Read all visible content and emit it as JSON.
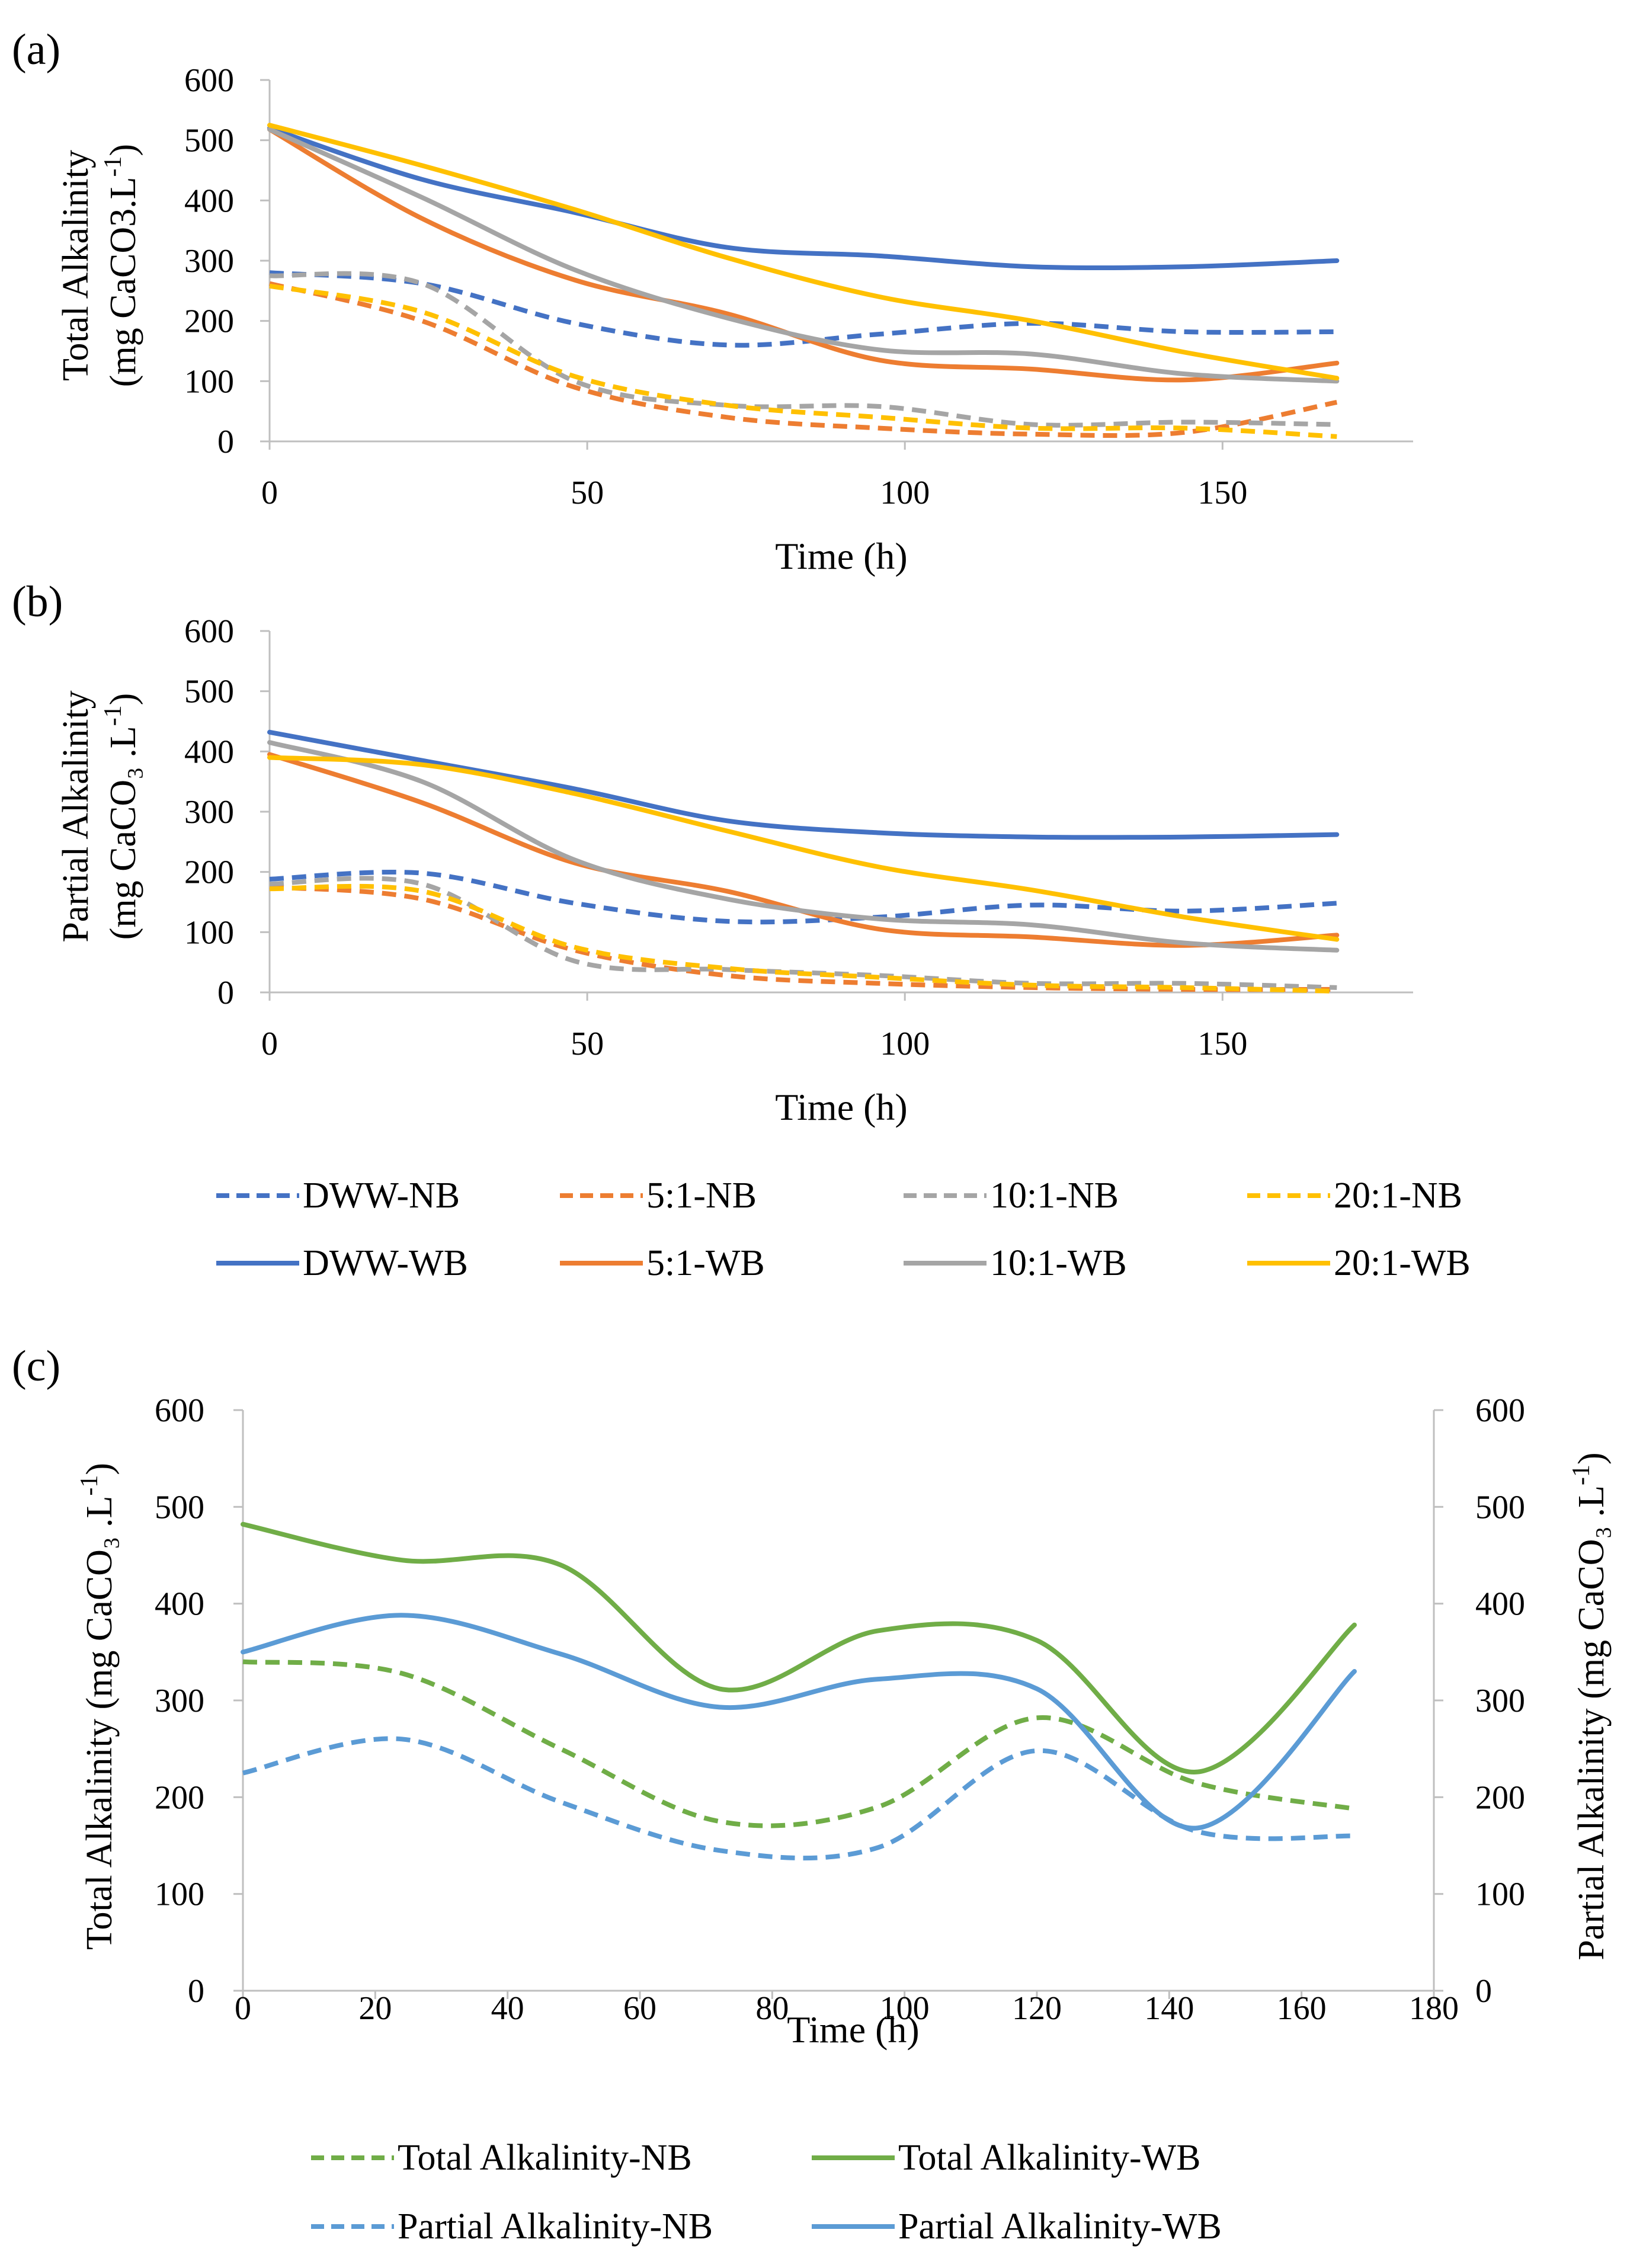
{
  "colors": {
    "DWW": "#4472C4",
    "r5": "#ED7D31",
    "r10": "#A5A5A5",
    "r20": "#FFC000",
    "total": "#70AD47",
    "partial": "#5B9BD5"
  },
  "chart_data": [
    {
      "panel": "(a)",
      "type": "line",
      "xlabel": "Time (h)",
      "ylabel_line1": "Total Alkalinity",
      "ylabel_line2": "(mg CaCO3.L",
      "ylabel_sup": "-1",
      "ylabel_close": ")",
      "xlim": [
        0,
        180
      ],
      "ylim": [
        0,
        600
      ],
      "xticks": [
        0,
        50,
        100,
        150
      ],
      "yticks": [
        0,
        100,
        200,
        300,
        400,
        500,
        600
      ],
      "series": [
        {
          "name": "DWW-NB",
          "color_key": "DWW",
          "dash": true,
          "x": [
            0,
            24,
            48,
            72,
            96,
            120,
            144,
            168
          ],
          "y": [
            280,
            262,
            196,
            160,
            178,
            196,
            182,
            182
          ]
        },
        {
          "name": "5:1-NB",
          "color_key": "r5",
          "dash": true,
          "x": [
            0,
            24,
            48,
            72,
            96,
            120,
            144,
            168
          ],
          "y": [
            262,
            200,
            90,
            40,
            22,
            12,
            15,
            65
          ]
        },
        {
          "name": "10:1-NB",
          "color_key": "r10",
          "dash": true,
          "x": [
            0,
            24,
            48,
            72,
            96,
            120,
            144,
            168
          ],
          "y": [
            275,
            262,
            100,
            60,
            58,
            28,
            32,
            28
          ]
        },
        {
          "name": "20:1-NB",
          "color_key": "r20",
          "dash": true,
          "x": [
            0,
            24,
            48,
            72,
            96,
            120,
            144,
            168
          ],
          "y": [
            258,
            215,
            108,
            60,
            40,
            22,
            22,
            8
          ]
        },
        {
          "name": "DWW-WB",
          "color_key": "DWW",
          "dash": false,
          "x": [
            0,
            24,
            48,
            72,
            96,
            120,
            144,
            168
          ],
          "y": [
            520,
            435,
            380,
            322,
            308,
            290,
            290,
            300
          ]
        },
        {
          "name": "5:1-WB",
          "color_key": "r5",
          "dash": false,
          "x": [
            0,
            24,
            48,
            72,
            96,
            120,
            144,
            168
          ],
          "y": [
            518,
            370,
            268,
            212,
            135,
            120,
            102,
            130
          ]
        },
        {
          "name": "10:1-WB",
          "color_key": "r10",
          "dash": false,
          "x": [
            0,
            24,
            48,
            72,
            96,
            120,
            144,
            168
          ],
          "y": [
            518,
            405,
            285,
            205,
            152,
            145,
            112,
            100
          ]
        },
        {
          "name": "20:1-WB",
          "color_key": "r20",
          "dash": false,
          "x": [
            0,
            24,
            48,
            72,
            96,
            120,
            144,
            168
          ],
          "y": [
            525,
            458,
            385,
            305,
            240,
            200,
            148,
            105
          ]
        }
      ]
    },
    {
      "panel": "(b)",
      "type": "line",
      "xlabel": "Time (h)",
      "ylabel_line1": "Partial  Alkalinity",
      "ylabel_line2": "(mg CaCO₃ .L",
      "ylabel_sup": "-1",
      "ylabel_close": ")",
      "xlim": [
        0,
        180
      ],
      "ylim": [
        0,
        600
      ],
      "xticks": [
        0,
        50,
        100,
        150
      ],
      "yticks": [
        0,
        100,
        200,
        300,
        400,
        500,
        600
      ],
      "series": [
        {
          "name": "DWW-NB",
          "color_key": "DWW",
          "dash": true,
          "x": [
            0,
            24,
            48,
            72,
            96,
            120,
            144,
            168
          ],
          "y": [
            188,
            198,
            148,
            118,
            125,
            145,
            135,
            148
          ]
        },
        {
          "name": "5:1-NB",
          "color_key": "r5",
          "dash": true,
          "x": [
            0,
            24,
            48,
            72,
            96,
            120,
            144,
            168
          ],
          "y": [
            175,
            155,
            70,
            28,
            15,
            8,
            5,
            5
          ]
        },
        {
          "name": "10:1-NB",
          "color_key": "r10",
          "dash": true,
          "x": [
            0,
            24,
            48,
            72,
            96,
            120,
            144,
            168
          ],
          "y": [
            180,
            180,
            52,
            38,
            28,
            15,
            15,
            8
          ]
        },
        {
          "name": "20:1-NB",
          "color_key": "r20",
          "dash": true,
          "x": [
            0,
            24,
            48,
            72,
            96,
            120,
            144,
            168
          ],
          "y": [
            172,
            168,
            75,
            40,
            25,
            12,
            8,
            2
          ]
        },
        {
          "name": "DWW-WB",
          "color_key": "DWW",
          "dash": false,
          "x": [
            0,
            24,
            48,
            72,
            96,
            120,
            144,
            168
          ],
          "y": [
            432,
            385,
            338,
            285,
            265,
            258,
            258,
            262
          ]
        },
        {
          "name": "5:1-WB",
          "color_key": "r5",
          "dash": false,
          "x": [
            0,
            24,
            48,
            72,
            96,
            120,
            144,
            168
          ],
          "y": [
            395,
            315,
            215,
            168,
            105,
            92,
            78,
            95
          ]
        },
        {
          "name": "10:1-WB",
          "color_key": "r10",
          "dash": false,
          "x": [
            0,
            24,
            48,
            72,
            96,
            120,
            144,
            168
          ],
          "y": [
            415,
            350,
            220,
            155,
            122,
            112,
            82,
            70
          ]
        },
        {
          "name": "20:1-WB",
          "color_key": "r20",
          "dash": false,
          "x": [
            0,
            24,
            48,
            72,
            96,
            120,
            144,
            168
          ],
          "y": [
            390,
            378,
            330,
            268,
            208,
            170,
            125,
            88
          ]
        }
      ]
    },
    {
      "panel": "(c)",
      "type": "line",
      "xlabel": "Time (h)",
      "ylabel_left": "Total Alkalinity  (mg CaCO₃ .L",
      "ylabel_right": "Partial Alkalinity (mg CaCO₃ .L",
      "ylabel_sup": "-1",
      "ylabel_close": ")",
      "xlim": [
        0,
        180
      ],
      "ylim": [
        0,
        600
      ],
      "y2lim": [
        0,
        600
      ],
      "xticks": [
        0,
        20,
        40,
        60,
        80,
        100,
        120,
        140,
        160,
        180
      ],
      "yticks": [
        0,
        100,
        200,
        300,
        400,
        500,
        600
      ],
      "series": [
        {
          "name": "Total Alkalinity-NB",
          "color_key": "total",
          "dash": true,
          "axis": "left",
          "x": [
            0,
            24,
            48,
            72,
            96,
            120,
            144,
            168
          ],
          "y": [
            340,
            328,
            250,
            175,
            190,
            282,
            215,
            188
          ]
        },
        {
          "name": "Total Alkalinity-WB",
          "color_key": "total",
          "dash": false,
          "axis": "left",
          "x": [
            0,
            24,
            48,
            72,
            96,
            120,
            144,
            168
          ],
          "y": [
            482,
            445,
            440,
            312,
            372,
            362,
            226,
            378
          ]
        },
        {
          "name": "Partial Alkalinity-NB",
          "color_key": "partial",
          "dash": true,
          "axis": "right",
          "x": [
            0,
            24,
            48,
            72,
            96,
            120,
            144,
            168
          ],
          "y": [
            225,
            260,
            195,
            145,
            148,
            248,
            165,
            160
          ]
        },
        {
          "name": "Partial Alkalinity-WB",
          "color_key": "partial",
          "dash": false,
          "axis": "right",
          "x": [
            0,
            24,
            48,
            72,
            96,
            120,
            144,
            168
          ],
          "y": [
            350,
            388,
            348,
            293,
            322,
            312,
            168,
            330
          ]
        }
      ]
    }
  ],
  "legend_ab": [
    {
      "name": "DWW-NB",
      "color_key": "DWW",
      "dash": true
    },
    {
      "name": "5:1-NB",
      "color_key": "r5",
      "dash": true
    },
    {
      "name": "10:1-NB",
      "color_key": "r10",
      "dash": true
    },
    {
      "name": "20:1-NB",
      "color_key": "r20",
      "dash": true
    },
    {
      "name": "DWW-WB",
      "color_key": "DWW",
      "dash": false
    },
    {
      "name": "5:1-WB",
      "color_key": "r5",
      "dash": false
    },
    {
      "name": "10:1-WB",
      "color_key": "r10",
      "dash": false
    },
    {
      "name": "20:1-WB",
      "color_key": "r20",
      "dash": false
    }
  ],
  "legend_c": [
    {
      "name": "Total Alkalinity-NB",
      "color_key": "total",
      "dash": true
    },
    {
      "name": "Total Alkalinity-WB",
      "color_key": "total",
      "dash": false
    },
    {
      "name": "Partial Alkalinity-NB",
      "color_key": "partial",
      "dash": true
    },
    {
      "name": "Partial Alkalinity-WB",
      "color_key": "partial",
      "dash": false
    }
  ]
}
